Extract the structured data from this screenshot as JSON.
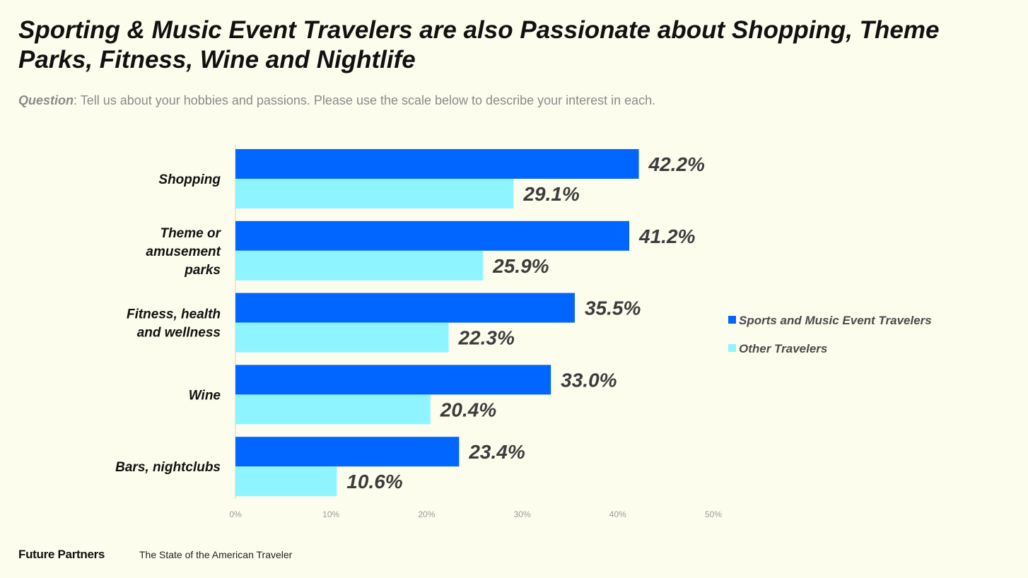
{
  "title": "Sporting & Music Event Travelers are also Passionate about Shopping, Theme Parks, Fitness, Wine and Nightlife",
  "question": {
    "label": "Question",
    "text": ": Tell us about your hobbies and passions.  Please use the scale below to describe your interest in each."
  },
  "chart_data": {
    "type": "bar",
    "orientation": "horizontal",
    "categories": [
      [
        "Shopping"
      ],
      [
        "Theme or",
        "amusement",
        "parks"
      ],
      [
        "Fitness, health",
        "and wellness"
      ],
      [
        "Wine"
      ],
      [
        "Bars, nightclubs"
      ]
    ],
    "series": [
      {
        "name": "Sports and Music Event Travelers",
        "color": "#0066ff",
        "values": [
          42.2,
          41.2,
          35.5,
          33.0,
          23.4
        ],
        "labels": [
          "42.2%",
          "41.2%",
          "35.5%",
          "33.0%",
          "23.4%"
        ]
      },
      {
        "name": "Other Travelers",
        "color": "#8ef4ff",
        "values": [
          29.1,
          25.9,
          22.3,
          20.4,
          10.6
        ],
        "labels": [
          "29.1%",
          "25.9%",
          "22.3%",
          "20.4%",
          "10.6%"
        ]
      }
    ],
    "xlim": [
      0,
      50
    ],
    "ticks": [
      0,
      10,
      20,
      30,
      40,
      50
    ],
    "tick_labels": [
      "0%",
      "10%",
      "20%",
      "30%",
      "40%",
      "50%"
    ],
    "grid": false,
    "legend_position": "right"
  },
  "footer": {
    "brand": "Future Partners",
    "subtitle": "The State of the American Traveler"
  }
}
